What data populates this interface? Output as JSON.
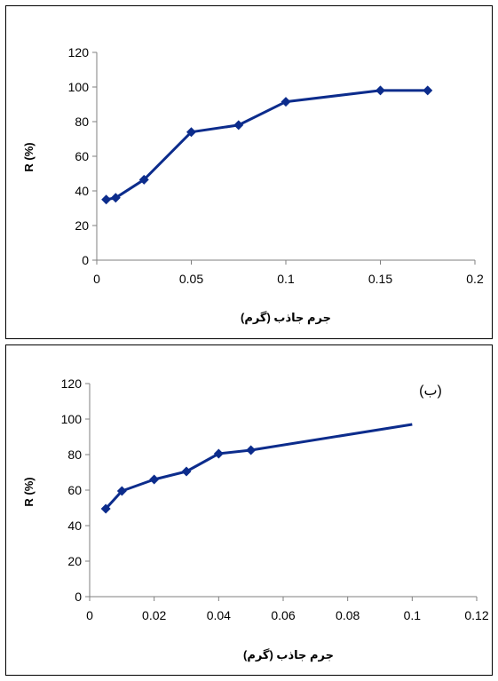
{
  "chart_data": [
    {
      "type": "line",
      "title": "",
      "xlabel": "جرم جاذب (گرم)",
      "ylabel": "R (%)",
      "annotation": "",
      "xlim": [
        0,
        0.2
      ],
      "ylim": [
        0,
        120
      ],
      "xticks": [
        "0",
        "0.05",
        "0.1",
        "0.15",
        "0.2"
      ],
      "yticks": [
        "0",
        "20",
        "40",
        "60",
        "80",
        "100",
        "120"
      ],
      "grid": false,
      "legend": "none",
      "color": "#0c2c8c",
      "series": [
        {
          "x": [
            0.005,
            0.01,
            0.025,
            0.05,
            0.075,
            0.1,
            0.15,
            0.175
          ],
          "y": [
            35,
            36,
            46.5,
            74,
            78,
            91.5,
            98,
            98
          ]
        }
      ]
    },
    {
      "type": "line",
      "title": "",
      "xlabel": "جرم جاذب (گرم)",
      "ylabel": "R (%)",
      "annotation": "(ب)",
      "xlim": [
        0,
        0.12
      ],
      "ylim": [
        0,
        120
      ],
      "xticks": [
        "0",
        "0.02",
        "0.04",
        "0.06",
        "0.08",
        "0.1",
        "0.12"
      ],
      "yticks": [
        "0",
        "20",
        "40",
        "60",
        "80",
        "100",
        "120"
      ],
      "grid": false,
      "legend": "none",
      "color": "#0c2c8c",
      "series": [
        {
          "x": [
            0.005,
            0.01,
            0.02,
            0.03,
            0.04,
            0.05,
            0.1
          ],
          "y": [
            49.5,
            59.5,
            66,
            70.5,
            80.5,
            82.5,
            97
          ],
          "markers_shown": 6
        }
      ]
    }
  ]
}
